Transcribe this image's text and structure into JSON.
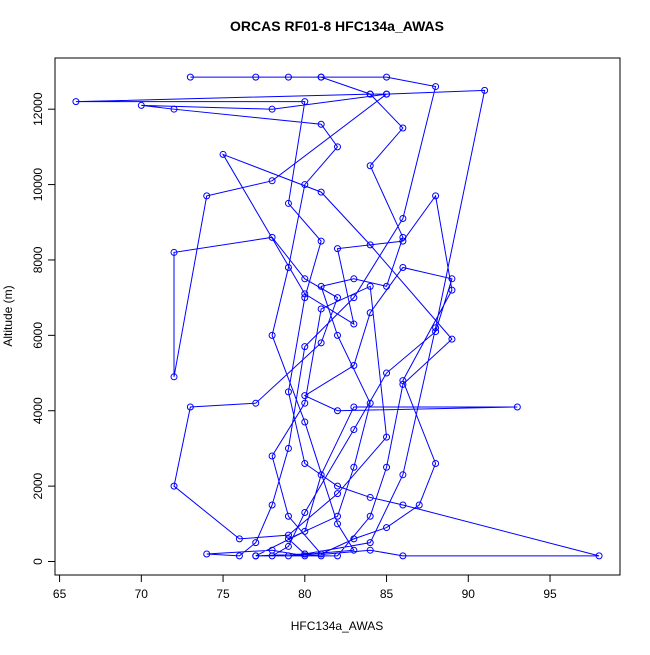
{
  "chart_data": {
    "type": "line",
    "title": "ORCAS RF01-8 HFC134a_AWAS",
    "x_label": "HFC134a_AWAS",
    "y_label": "Altitude (m)",
    "color": "#0000ff",
    "markers": true,
    "x": [
      81,
      80,
      79,
      82,
      83,
      84,
      82,
      81,
      83,
      85,
      86,
      84,
      86,
      84,
      81,
      73,
      77,
      79,
      81,
      85,
      88,
      86,
      83,
      80,
      79,
      78,
      77,
      76,
      74,
      78,
      80,
      84,
      86,
      98,
      86,
      84,
      82,
      80,
      79,
      80,
      81,
      79,
      80,
      66,
      84,
      85,
      78,
      70,
      72,
      81,
      82,
      80,
      79,
      78,
      80,
      82,
      83,
      79,
      77,
      80,
      81,
      83,
      93,
      82,
      80,
      83,
      84,
      86,
      89,
      88,
      85,
      83,
      80,
      79,
      78,
      82,
      84,
      85,
      86,
      89,
      84,
      81,
      75,
      80,
      83,
      82,
      86,
      88,
      89,
      86,
      88,
      87,
      85,
      83,
      81,
      79,
      78,
      80,
      81,
      84,
      85,
      82,
      79,
      76,
      72,
      73,
      77,
      81,
      82,
      80,
      78,
      72,
      72,
      74,
      78,
      85,
      91,
      88,
      86,
      84,
      80,
      77
    ],
    "values": [
      150,
      200,
      600,
      1200,
      2500,
      4200,
      6000,
      7300,
      7500,
      7300,
      8600,
      10500,
      11500,
      12400,
      12850,
      12850,
      12850,
      12850,
      12850,
      12850,
      12600,
      9100,
      7000,
      5700,
      3000,
      1500,
      500,
      150,
      200,
      300,
      150,
      300,
      150,
      150,
      1500,
      1700,
      2000,
      2600,
      4500,
      7000,
      8500,
      9500,
      12200,
      12200,
      12400,
      12400,
      12000,
      12100,
      12000,
      11600,
      11000,
      10000,
      7800,
      6000,
      3700,
      1000,
      300,
      150,
      150,
      800,
      2300,
      4100,
      4100,
      4000,
      4400,
      5200,
      6600,
      7800,
      7500,
      6100,
      5000,
      3500,
      1300,
      400,
      150,
      150,
      1200,
      2500,
      4700,
      5900,
      8400,
      9800,
      10800,
      7100,
      6300,
      8300,
      8500,
      9700,
      7200,
      4800,
      2600,
      1500,
      900,
      600,
      200,
      1200,
      2800,
      4200,
      6700,
      7300,
      3300,
      1800,
      700,
      600,
      2000,
      4100,
      4200,
      5800,
      7000,
      7500,
      8600,
      8200,
      4900,
      9700,
      10100,
      12400,
      12500,
      6200,
      2300,
      500,
      200,
      150
    ],
    "xlim": [
      64.72,
      99.28
    ],
    "ylim": [
      -358,
      13358
    ],
    "xticks": [
      65,
      70,
      75,
      80,
      85,
      90,
      95
    ],
    "yticks": [
      0,
      2000,
      4000,
      6000,
      8000,
      10000,
      12000
    ]
  }
}
